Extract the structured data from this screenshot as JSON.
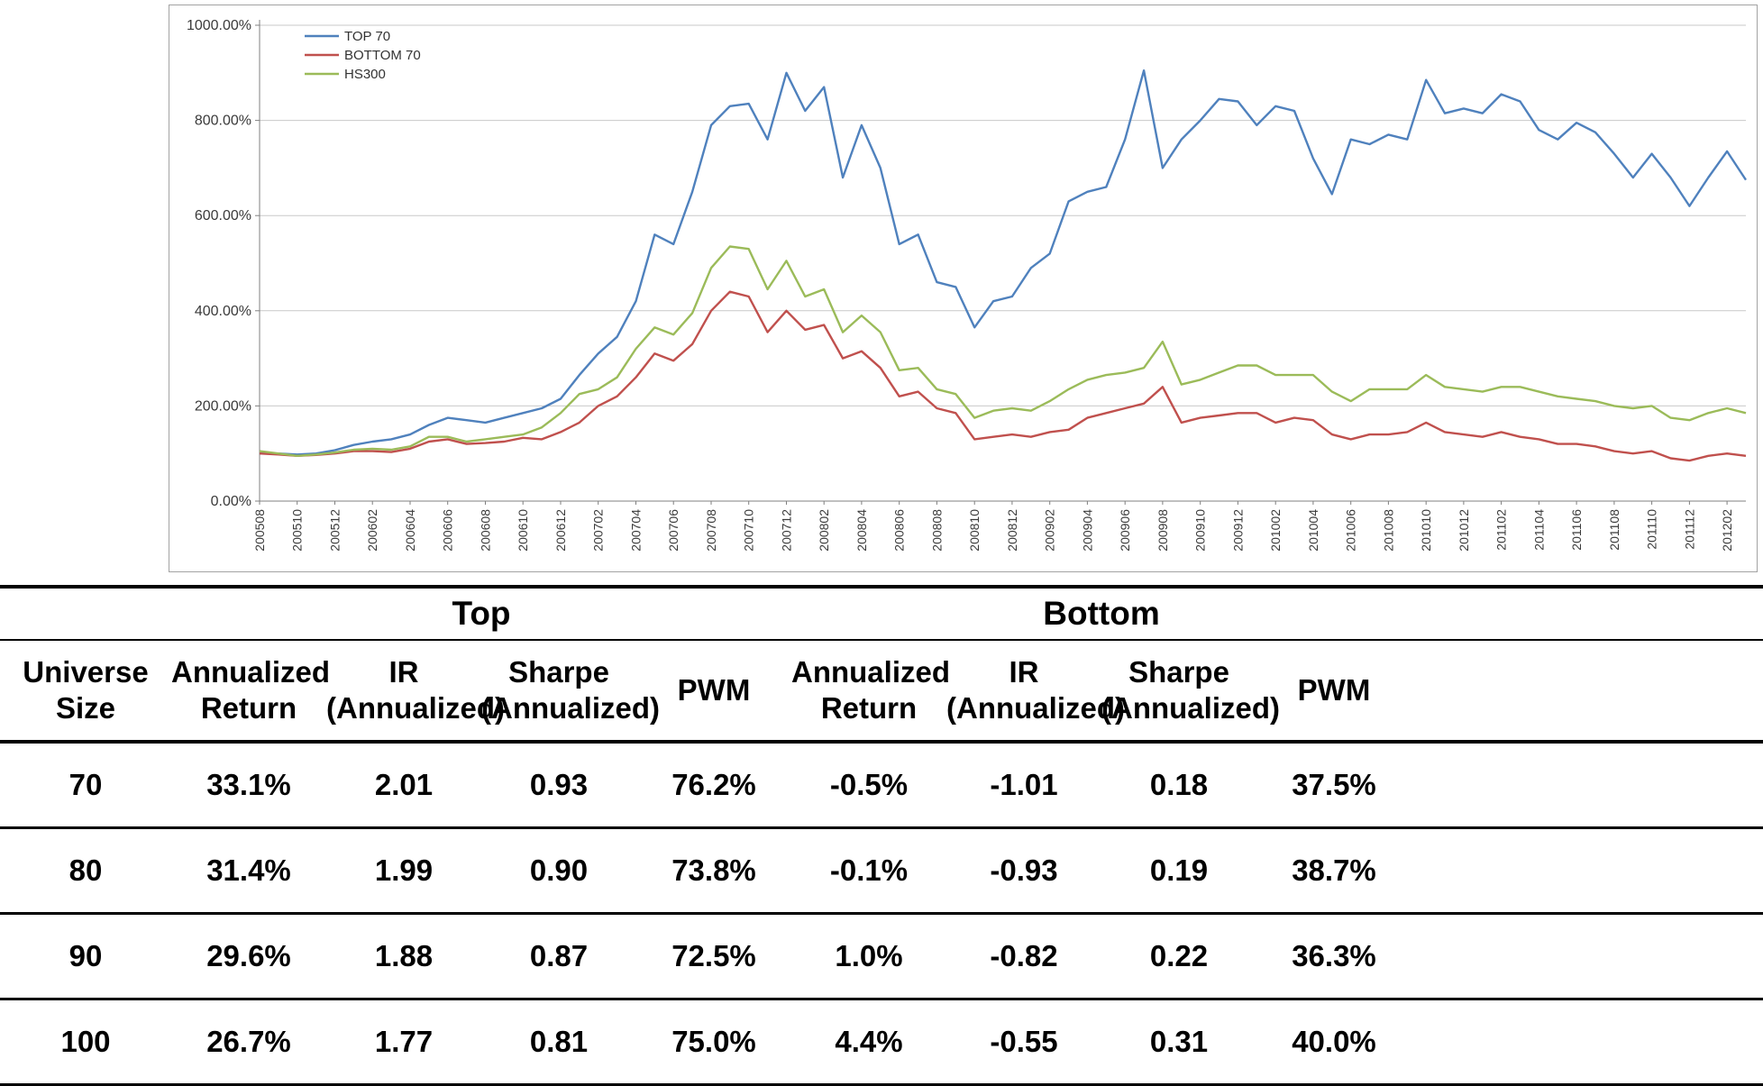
{
  "chart_data": {
    "type": "line",
    "title": "",
    "xlabel": "",
    "ylabel": "",
    "ylim": [
      0,
      1000
    ],
    "grid": "horizontal",
    "legend_position": "top-left-inside",
    "tick_every": 2,
    "yticks": [
      {
        "value": 0,
        "label": "0.00%"
      },
      {
        "value": 200,
        "label": "200.00%"
      },
      {
        "value": 400,
        "label": "400.00%"
      },
      {
        "value": 600,
        "label": "600.00%"
      },
      {
        "value": 800,
        "label": "800.00%"
      },
      {
        "value": 1000,
        "label": "1000.00%"
      }
    ],
    "x": [
      "200508",
      "200509",
      "200510",
      "200511",
      "200512",
      "200601",
      "200602",
      "200603",
      "200604",
      "200605",
      "200606",
      "200607",
      "200608",
      "200609",
      "200610",
      "200611",
      "200612",
      "200701",
      "200702",
      "200703",
      "200704",
      "200705",
      "200706",
      "200707",
      "200708",
      "200709",
      "200710",
      "200711",
      "200712",
      "200801",
      "200802",
      "200803",
      "200804",
      "200805",
      "200806",
      "200807",
      "200808",
      "200809",
      "200810",
      "200811",
      "200812",
      "200901",
      "200902",
      "200903",
      "200904",
      "200905",
      "200906",
      "200907",
      "200908",
      "200909",
      "200910",
      "200911",
      "200912",
      "201001",
      "201002",
      "201003",
      "201004",
      "201005",
      "201006",
      "201007",
      "201008",
      "201009",
      "201010",
      "201011",
      "201012",
      "201101",
      "201102",
      "201103",
      "201104",
      "201105",
      "201106",
      "201107",
      "201108",
      "201109",
      "201110",
      "201111",
      "201112",
      "201201",
      "201202",
      "201203"
    ],
    "series": [
      {
        "name": "TOP 70",
        "color": "#4F81BD",
        "values": [
          100,
          100,
          98,
          100,
          107,
          118,
          125,
          130,
          140,
          160,
          175,
          170,
          165,
          175,
          185,
          195,
          215,
          265,
          310,
          345,
          420,
          560,
          540,
          650,
          790,
          830,
          835,
          760,
          900,
          820,
          870,
          680,
          790,
          700,
          540,
          560,
          460,
          450,
          365,
          420,
          430,
          490,
          520,
          630,
          650,
          660,
          760,
          905,
          700,
          760,
          800,
          845,
          840,
          790,
          830,
          820,
          720,
          645,
          760,
          750,
          770,
          760,
          885,
          815,
          825,
          815,
          855,
          840,
          780,
          760,
          795,
          775,
          730,
          680,
          730,
          680,
          620,
          680,
          735,
          675
        ]
      },
      {
        "name": "BOTTOM 70",
        "color": "#C0504D",
        "values": [
          100,
          98,
          95,
          97,
          100,
          105,
          105,
          103,
          110,
          125,
          130,
          120,
          122,
          125,
          133,
          130,
          145,
          165,
          200,
          220,
          260,
          310,
          295,
          330,
          400,
          440,
          430,
          355,
          400,
          360,
          370,
          300,
          315,
          280,
          220,
          230,
          195,
          185,
          130,
          135,
          140,
          135,
          145,
          150,
          175,
          185,
          195,
          205,
          240,
          165,
          175,
          180,
          185,
          185,
          165,
          175,
          170,
          140,
          130,
          140,
          140,
          145,
          165,
          145,
          140,
          135,
          145,
          135,
          130,
          120,
          120,
          115,
          105,
          100,
          105,
          90,
          85,
          95,
          100,
          95
        ]
      },
      {
        "name": "HS300",
        "color": "#9BBB59",
        "values": [
          105,
          100,
          95,
          98,
          102,
          108,
          110,
          108,
          115,
          135,
          135,
          125,
          130,
          135,
          140,
          155,
          185,
          225,
          235,
          260,
          320,
          365,
          350,
          395,
          490,
          535,
          530,
          445,
          505,
          430,
          445,
          355,
          390,
          355,
          275,
          280,
          235,
          225,
          175,
          190,
          195,
          190,
          210,
          235,
          255,
          265,
          270,
          280,
          335,
          245,
          255,
          270,
          285,
          285,
          265,
          265,
          265,
          230,
          210,
          235,
          235,
          235,
          265,
          240,
          235,
          230,
          240,
          240,
          230,
          220,
          215,
          210,
          200,
          195,
          200,
          175,
          170,
          185,
          195,
          185
        ]
      }
    ]
  },
  "table": {
    "group_headers": [
      "Top",
      "Bottom"
    ],
    "columns": {
      "universe": [
        "Universe",
        "Size"
      ],
      "top": [
        [
          "Annualized",
          "Return"
        ],
        [
          "IR",
          "(Annualized)"
        ],
        [
          "Sharpe",
          "(Annualized)"
        ],
        [
          "PWM"
        ]
      ],
      "bottom": [
        [
          "Annualized",
          "Return"
        ],
        [
          "IR",
          "(Annualized)"
        ],
        [
          "Sharpe",
          "(Annualized)"
        ],
        [
          "PWM"
        ]
      ]
    },
    "rows": [
      {
        "size": "70",
        "top": [
          "33.1%",
          "2.01",
          "0.93",
          "76.2%"
        ],
        "bottom": [
          "-0.5%",
          "-1.01",
          "0.18",
          "37.5%"
        ]
      },
      {
        "size": "80",
        "top": [
          "31.4%",
          "1.99",
          "0.90",
          "73.8%"
        ],
        "bottom": [
          "-0.1%",
          "-0.93",
          "0.19",
          "38.7%"
        ]
      },
      {
        "size": "90",
        "top": [
          "29.6%",
          "1.88",
          "0.87",
          "72.5%"
        ],
        "bottom": [
          "1.0%",
          "-0.82",
          "0.22",
          "36.3%"
        ]
      },
      {
        "size": "100",
        "top": [
          "26.7%",
          "1.77",
          "0.81",
          "75.0%"
        ],
        "bottom": [
          "4.4%",
          "-0.55",
          "0.31",
          "40.0%"
        ]
      }
    ]
  }
}
